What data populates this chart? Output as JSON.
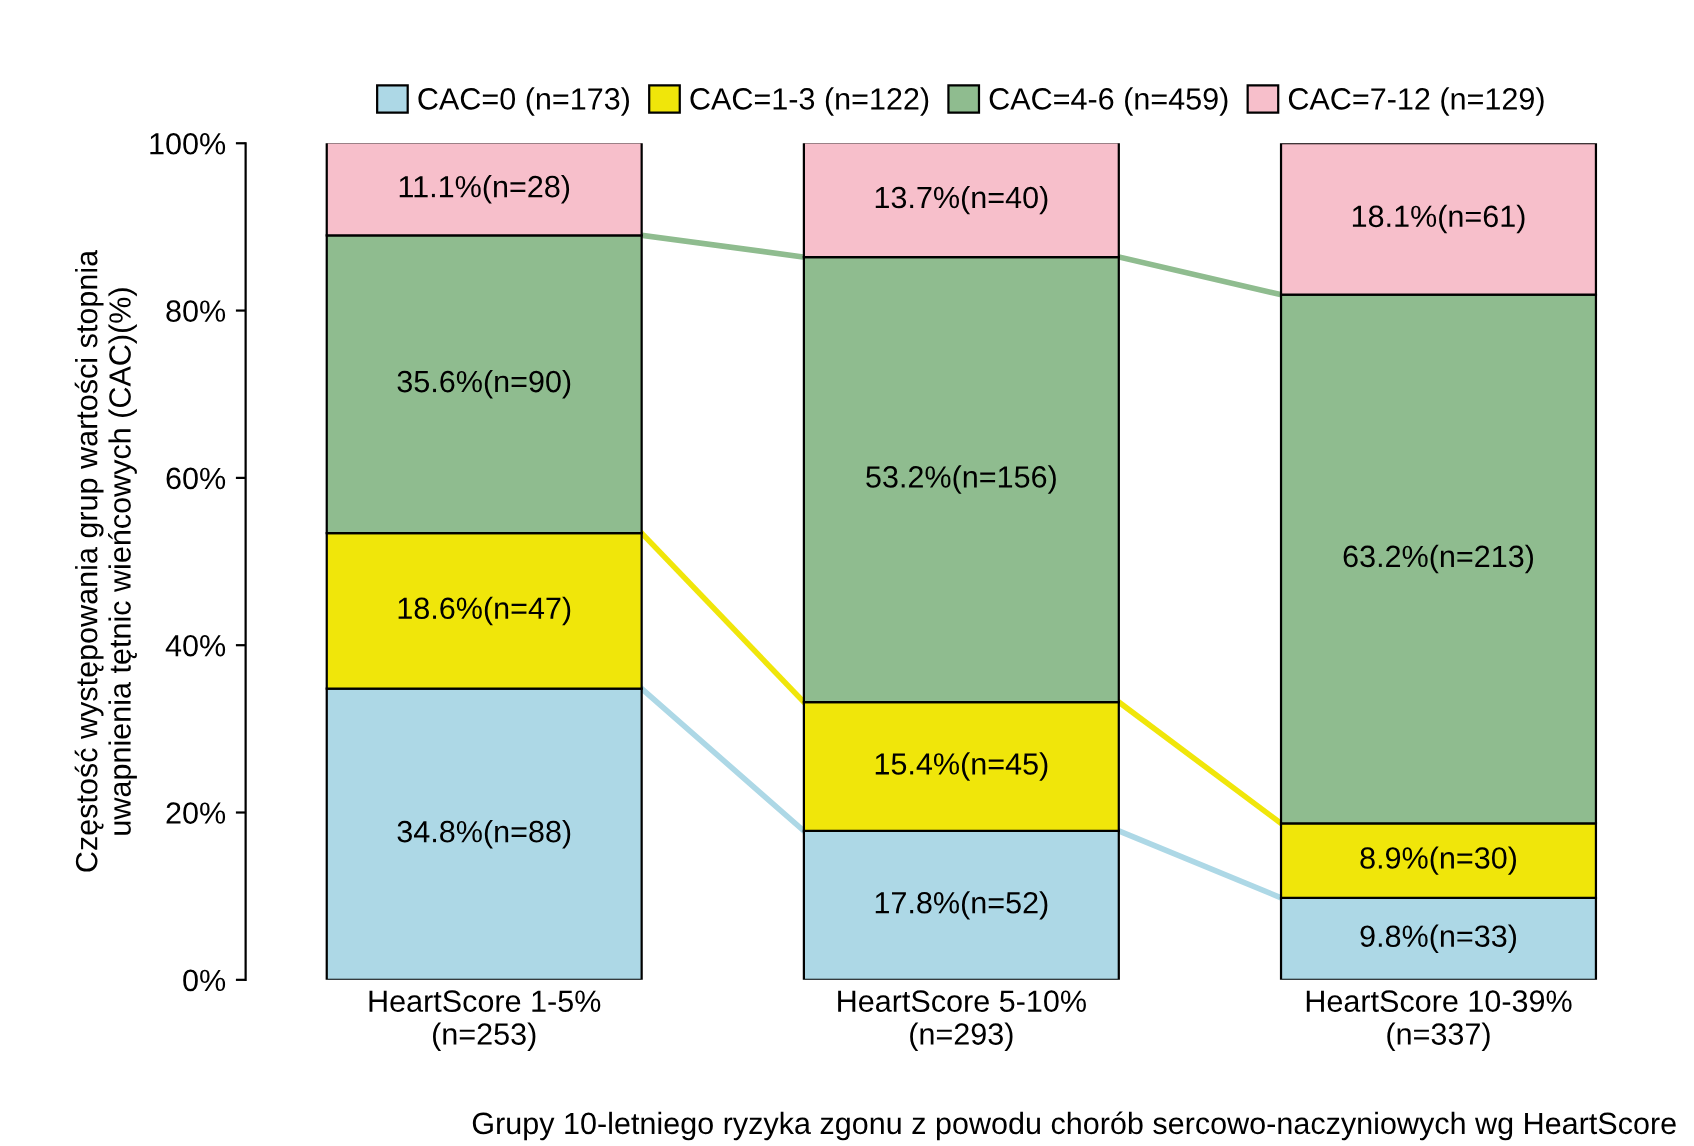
{
  "chart_data": {
    "type": "bar",
    "stacked": true,
    "categories": [
      "HeartScore 1-5%\n(n=253)",
      "HeartScore 5-10%\n(n=293)",
      "HeartScore 10-39%\n(n=337)"
    ],
    "series": [
      {
        "name": "CAC=0 (n=173)",
        "color": "#add8e6",
        "values": [
          34.8,
          17.8,
          9.8
        ],
        "value_labels": [
          "34.8%(n=88)",
          "17.8%(n=52)",
          "9.8%(n=33)"
        ]
      },
      {
        "name": "CAC=1-3 (n=122)",
        "color": "#f0e60a",
        "values": [
          18.6,
          15.4,
          8.9
        ],
        "value_labels": [
          "18.6%(n=47)",
          "15.4%(n=45)",
          "8.9%(n=30)"
        ]
      },
      {
        "name": "CAC=4-6 (n=459)",
        "color": "#8fbc8f",
        "values": [
          35.6,
          53.2,
          63.2
        ],
        "value_labels": [
          "35.6%(n=90)",
          "53.2%(n=156)",
          "63.2%(n=213)"
        ]
      },
      {
        "name": "CAC=7-12 (n=129)",
        "color": "#f7bfcb",
        "values": [
          11.1,
          13.7,
          18.1
        ],
        "value_labels": [
          "11.1%(n=28)",
          "13.7%(n=40)",
          "18.1%(n=61)"
        ]
      }
    ],
    "ylim": [
      0,
      100
    ],
    "yticks": [
      {
        "value": 0,
        "label": "0%"
      },
      {
        "value": 20,
        "label": "20%"
      },
      {
        "value": 40,
        "label": "40%"
      },
      {
        "value": 60,
        "label": "60%"
      },
      {
        "value": 80,
        "label": "80%"
      },
      {
        "value": 100,
        "label": "100%"
      }
    ],
    "ylabel": "Częstość występowania grup wartości stopnia\nuwapnienia tętnic wieńcowych (CAC)(%)",
    "xlabel": "Grupy 10-letniego ryzyka zgonu z powodu chorób sercowo-naczyniowych wg HeartScore",
    "legend": "top",
    "grid": false
  }
}
